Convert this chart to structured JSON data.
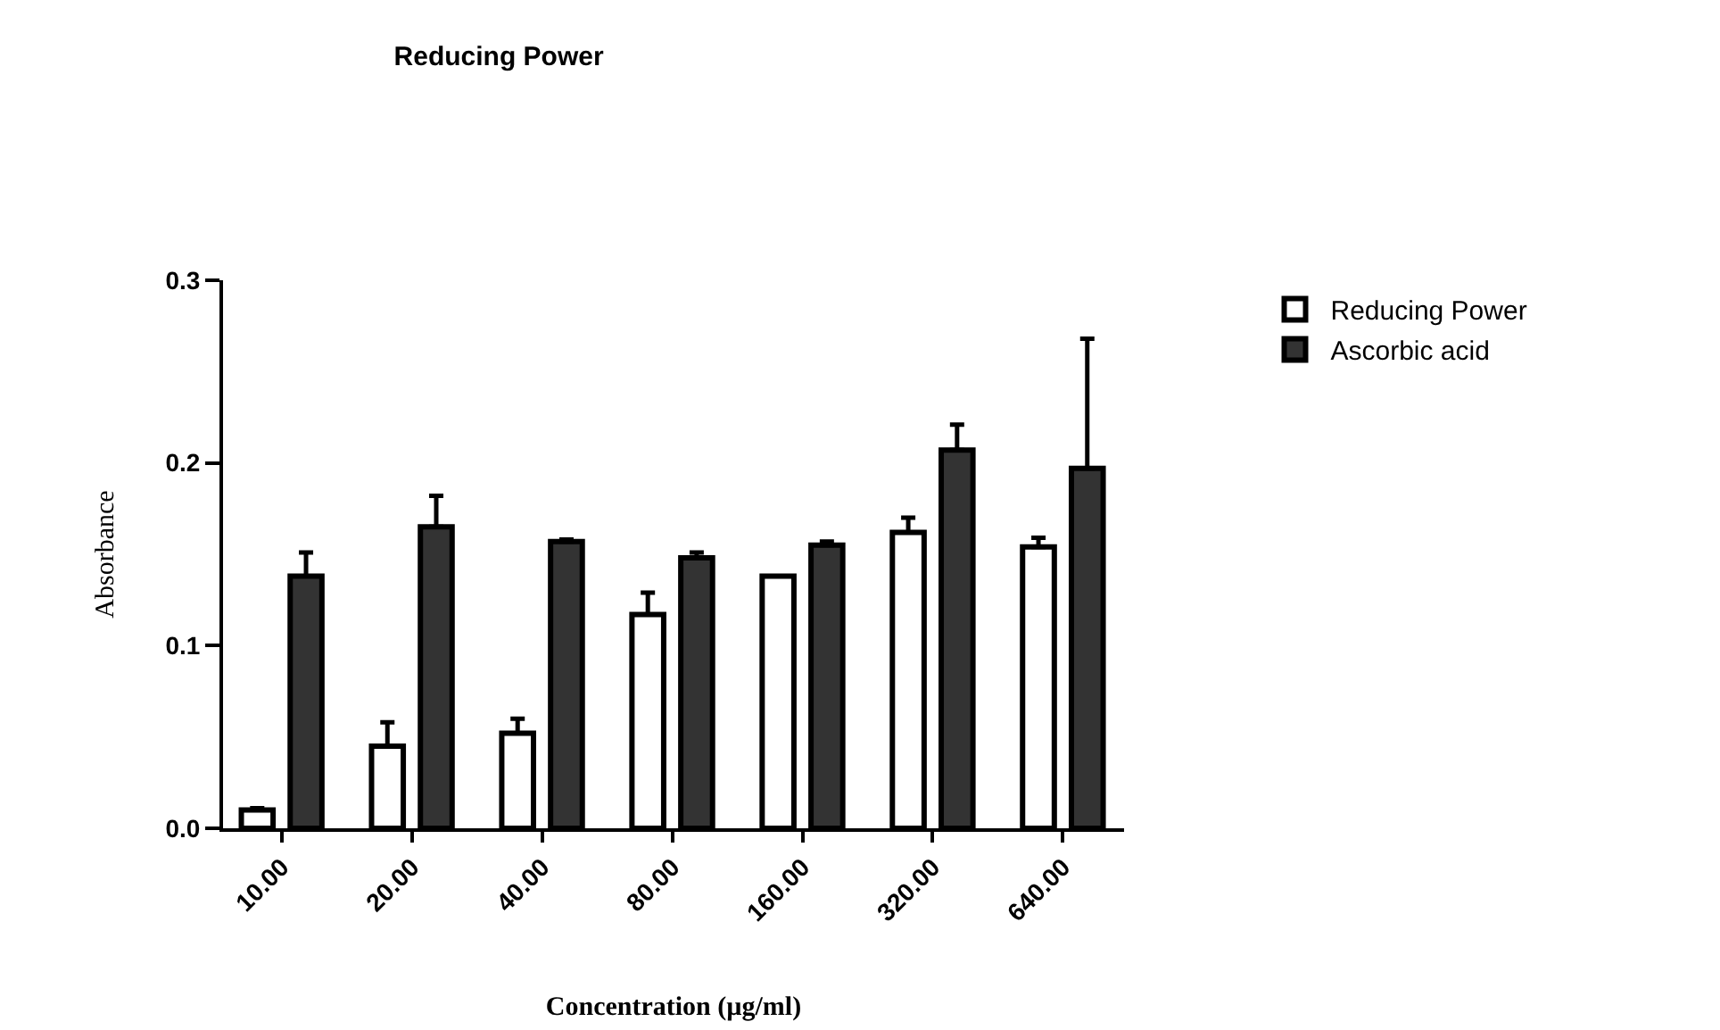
{
  "chart_data": {
    "type": "bar",
    "title": "Reducing Power",
    "xlabel": "Concentration (µg/ml)",
    "ylabel": "Absorbance",
    "categories": [
      "10.00",
      "20.00",
      "40.00",
      "80.00",
      "160.00",
      "320.00",
      "640.00"
    ],
    "series": [
      {
        "name": "Reducing Power",
        "color": "#ffffff",
        "values": [
          0.01,
          0.045,
          0.052,
          0.117,
          0.138,
          0.162,
          0.154
        ],
        "errors": [
          [
            0.01,
            0.011
          ],
          [
            0.045,
            0.058
          ],
          [
            0.052,
            0.06
          ],
          [
            0.117,
            0.129
          ],
          null,
          [
            0.162,
            0.17
          ],
          [
            0.154,
            0.159
          ]
        ]
      },
      {
        "name": "Ascorbic acid",
        "color": "#333333",
        "values": [
          0.138,
          0.165,
          0.157,
          0.148,
          0.155,
          0.207,
          0.197
        ],
        "errors": [
          [
            0.138,
            0.151
          ],
          [
            0.165,
            0.182
          ],
          [
            0.157,
            0.158
          ],
          [
            0.148,
            0.151
          ],
          [
            0.155,
            0.157
          ],
          [
            0.207,
            0.221
          ],
          [
            0.197,
            0.268
          ]
        ]
      }
    ],
    "ylim": [
      0,
      0.3
    ],
    "yticks": [
      {
        "value": 0,
        "label": "0.0"
      },
      {
        "value": 0.1,
        "label": "0.1"
      },
      {
        "value": 0.2,
        "label": "0.2"
      },
      {
        "value": 0.3,
        "label": "0.3"
      }
    ],
    "grid": false,
    "legend": "top right"
  }
}
